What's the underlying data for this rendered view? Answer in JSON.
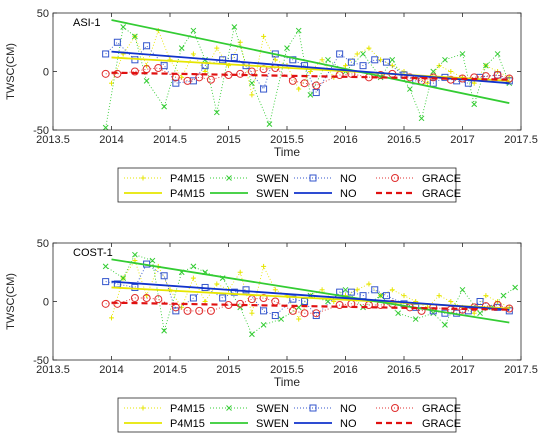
{
  "chart_data": [
    {
      "type": "line",
      "annotation": "ASI-1",
      "xlabel": "Time",
      "ylabel": "TWSC(CM)",
      "xlim": [
        2013.5,
        2017.5
      ],
      "ylim": [
        -50,
        50
      ],
      "xticks": [
        "2013.5",
        "2014",
        "2014.5",
        "2015",
        "2015.5",
        "2016",
        "2016.5",
        "2017",
        "2017.5"
      ],
      "yticks": [
        "-50",
        "0",
        "50"
      ],
      "grid": false,
      "legend_position": "bottom",
      "series": [
        {
          "name": "P4M15",
          "kind": "monthly",
          "color": "#e6e600",
          "x": [
            2014.0,
            2014.1,
            2014.2,
            2014.3,
            2014.4,
            2014.5,
            2014.6,
            2014.7,
            2014.8,
            2014.9,
            2015.0,
            2015.1,
            2015.2,
            2015.3,
            2015.4,
            2015.5,
            2015.6,
            2015.7,
            2015.8,
            2015.9,
            2016.0,
            2016.1,
            2016.2,
            2016.3,
            2016.4,
            2016.5,
            2016.6,
            2016.7,
            2016.8,
            2016.9,
            2017.0,
            2017.1,
            2017.2,
            2017.3,
            2017.4
          ],
          "y": [
            -10,
            15,
            30,
            5,
            35,
            10,
            -5,
            15,
            0,
            20,
            5,
            25,
            -20,
            30,
            10,
            5,
            -15,
            0,
            10,
            -5,
            5,
            15,
            20,
            10,
            5,
            0,
            -5,
            -10,
            5,
            0,
            -5,
            -10,
            5,
            0,
            -5
          ]
        },
        {
          "name": "SWEN",
          "kind": "monthly",
          "color": "#33cc33",
          "x": [
            2013.95,
            2014.1,
            2014.2,
            2014.3,
            2014.45,
            2014.6,
            2014.7,
            2014.8,
            2014.9,
            2015.05,
            2015.2,
            2015.35,
            2015.5,
            2015.6,
            2015.7,
            2015.85,
            2016.0,
            2016.15,
            2016.3,
            2016.4,
            2016.55,
            2016.65,
            2016.75,
            2016.85,
            2017.0,
            2017.1,
            2017.2,
            2017.3,
            2017.4
          ],
          "y": [
            -48,
            38,
            30,
            -8,
            -30,
            20,
            35,
            10,
            -35,
            38,
            -10,
            -45,
            20,
            35,
            -20,
            10,
            0,
            15,
            -5,
            10,
            -15,
            -40,
            0,
            10,
            15,
            -28,
            5,
            15,
            -10
          ]
        },
        {
          "name": "NO",
          "kind": "monthly",
          "color": "#3355cc",
          "x": [
            2013.95,
            2014.05,
            2014.2,
            2014.3,
            2014.45,
            2014.55,
            2014.7,
            2014.8,
            2014.95,
            2015.05,
            2015.15,
            2015.3,
            2015.4,
            2015.55,
            2015.65,
            2015.75,
            2015.95,
            2016.05,
            2016.15,
            2016.25,
            2016.35,
            2016.5,
            2016.6,
            2016.75,
            2016.85,
            2016.95,
            2017.05,
            2017.15,
            2017.3,
            2017.4
          ],
          "y": [
            15,
            25,
            10,
            22,
            5,
            -10,
            -8,
            5,
            10,
            12,
            5,
            -15,
            15,
            10,
            5,
            -18,
            15,
            8,
            5,
            10,
            8,
            -3,
            -8,
            -10,
            -5,
            -8,
            -10,
            -5,
            -3,
            -8
          ]
        },
        {
          "name": "GRACE",
          "kind": "monthly",
          "color": "#e03030",
          "x": [
            2013.95,
            2014.05,
            2014.2,
            2014.3,
            2014.4,
            2014.55,
            2014.65,
            2014.75,
            2014.85,
            2015.0,
            2015.1,
            2015.2,
            2015.3,
            2015.4,
            2015.55,
            2015.65,
            2015.75,
            2015.95,
            2016.05,
            2016.2,
            2016.3,
            2016.4,
            2016.55,
            2016.65,
            2016.75,
            2016.9,
            2017.0,
            2017.1,
            2017.2,
            2017.3,
            2017.4
          ],
          "y": [
            -2,
            -2,
            0,
            2,
            3,
            -5,
            -8,
            -5,
            -7,
            -3,
            -2,
            0,
            2,
            3,
            -8,
            -10,
            -12,
            -3,
            -2,
            -5,
            -3,
            -2,
            -5,
            -8,
            -5,
            -7,
            -6,
            -5,
            -4,
            -3,
            -6
          ]
        },
        {
          "name": "P4M15",
          "kind": "trend",
          "color": "#e6e600",
          "x": [
            2014.0,
            2017.4
          ],
          "y": [
            12,
            -8
          ]
        },
        {
          "name": "SWEN",
          "kind": "trend",
          "color": "#33cc33",
          "x": [
            2014.0,
            2017.4
          ],
          "y": [
            44,
            -27
          ]
        },
        {
          "name": "NO",
          "kind": "trend",
          "color": "#1133cc",
          "x": [
            2014.0,
            2017.4
          ],
          "y": [
            17,
            -10
          ]
        },
        {
          "name": "GRACE",
          "kind": "trend",
          "color": "#e01010",
          "x": [
            2014.0,
            2017.4
          ],
          "y": [
            -1,
            -7
          ]
        }
      ]
    },
    {
      "type": "line",
      "annotation": "COST-1",
      "xlabel": "Time",
      "ylabel": "TWSC(CM)",
      "xlim": [
        2013.5,
        2017.5
      ],
      "ylim": [
        -50,
        50
      ],
      "xticks": [
        "2013.5",
        "2014",
        "2014.5",
        "2015",
        "2015.5",
        "2016",
        "2016.5",
        "2017",
        "2017.5"
      ],
      "yticks": [
        "-50",
        "0",
        "50"
      ],
      "grid": false,
      "legend_position": "bottom",
      "series": [
        {
          "name": "P4M15",
          "kind": "monthly",
          "color": "#e6e600",
          "x": [
            2014.0,
            2014.1,
            2014.2,
            2014.3,
            2014.4,
            2014.5,
            2014.6,
            2014.7,
            2014.8,
            2014.9,
            2015.0,
            2015.1,
            2015.2,
            2015.3,
            2015.4,
            2015.5,
            2015.6,
            2015.7,
            2015.8,
            2015.9,
            2016.0,
            2016.1,
            2016.2,
            2016.3,
            2016.4,
            2016.5,
            2016.6,
            2016.7,
            2016.8,
            2016.9,
            2017.0,
            2017.1,
            2017.2,
            2017.3,
            2017.4
          ],
          "y": [
            -14,
            20,
            35,
            5,
            30,
            10,
            -5,
            20,
            0,
            15,
            10,
            25,
            -10,
            30,
            10,
            5,
            -15,
            5,
            10,
            0,
            5,
            10,
            15,
            5,
            10,
            5,
            0,
            -5,
            5,
            0,
            -5,
            -10,
            5,
            0,
            -5
          ]
        },
        {
          "name": "SWEN",
          "kind": "monthly",
          "color": "#33cc33",
          "x": [
            2013.95,
            2014.1,
            2014.2,
            2014.35,
            2014.45,
            2014.6,
            2014.7,
            2014.8,
            2014.95,
            2015.1,
            2015.2,
            2015.3,
            2015.45,
            2015.6,
            2015.7,
            2015.85,
            2016.0,
            2016.15,
            2016.3,
            2016.45,
            2016.6,
            2016.75,
            2016.85,
            2017.0,
            2017.15,
            2017.25,
            2017.35,
            2017.45
          ],
          "y": [
            30,
            20,
            40,
            35,
            -25,
            25,
            30,
            25,
            20,
            -5,
            -28,
            -20,
            -15,
            -5,
            5,
            0,
            10,
            -5,
            5,
            -10,
            -15,
            -10,
            -20,
            10,
            -10,
            -5,
            5,
            12
          ]
        },
        {
          "name": "NO",
          "kind": "monthly",
          "color": "#3355cc",
          "x": [
            2013.95,
            2014.05,
            2014.2,
            2014.3,
            2014.45,
            2014.55,
            2014.7,
            2014.8,
            2014.95,
            2015.05,
            2015.15,
            2015.3,
            2015.4,
            2015.55,
            2015.65,
            2015.75,
            2015.95,
            2016.05,
            2016.15,
            2016.25,
            2016.35,
            2016.5,
            2016.6,
            2016.75,
            2016.85,
            2016.95,
            2017.05,
            2017.15,
            2017.3,
            2017.4
          ],
          "y": [
            17,
            15,
            12,
            32,
            22,
            -8,
            3,
            12,
            3,
            8,
            10,
            -8,
            -12,
            2,
            0,
            -12,
            8,
            8,
            5,
            10,
            5,
            -2,
            -5,
            -8,
            -10,
            -10,
            -8,
            0,
            -5,
            -8
          ]
        },
        {
          "name": "GRACE",
          "kind": "monthly",
          "color": "#e03030",
          "x": [
            2013.95,
            2014.05,
            2014.2,
            2014.3,
            2014.4,
            2014.55,
            2014.65,
            2014.75,
            2014.85,
            2015.0,
            2015.1,
            2015.2,
            2015.3,
            2015.4,
            2015.55,
            2015.65,
            2015.75,
            2015.95,
            2016.05,
            2016.2,
            2016.3,
            2016.4,
            2016.55,
            2016.65,
            2016.75,
            2016.9,
            2017.0,
            2017.1,
            2017.2,
            2017.3,
            2017.4
          ],
          "y": [
            -2,
            -2,
            3,
            3,
            2,
            -5,
            -8,
            -8,
            -8,
            -3,
            -2,
            2,
            3,
            0,
            -8,
            -10,
            -10,
            -3,
            -2,
            -3,
            -3,
            -2,
            -5,
            -8,
            -5,
            -7,
            -7,
            -5,
            -4,
            -3,
            -6
          ]
        },
        {
          "name": "P4M15",
          "kind": "trend",
          "color": "#e6e600",
          "x": [
            2014.0,
            2017.4
          ],
          "y": [
            12,
            -6
          ]
        },
        {
          "name": "SWEN",
          "kind": "trend",
          "color": "#33cc33",
          "x": [
            2014.0,
            2017.4
          ],
          "y": [
            36,
            -18
          ]
        },
        {
          "name": "NO",
          "kind": "trend",
          "color": "#1133cc",
          "x": [
            2014.0,
            2017.4
          ],
          "y": [
            17,
            -7
          ]
        },
        {
          "name": "GRACE",
          "kind": "trend",
          "color": "#e01010",
          "x": [
            2014.0,
            2017.4
          ],
          "y": [
            -1,
            -7
          ]
        }
      ]
    }
  ]
}
